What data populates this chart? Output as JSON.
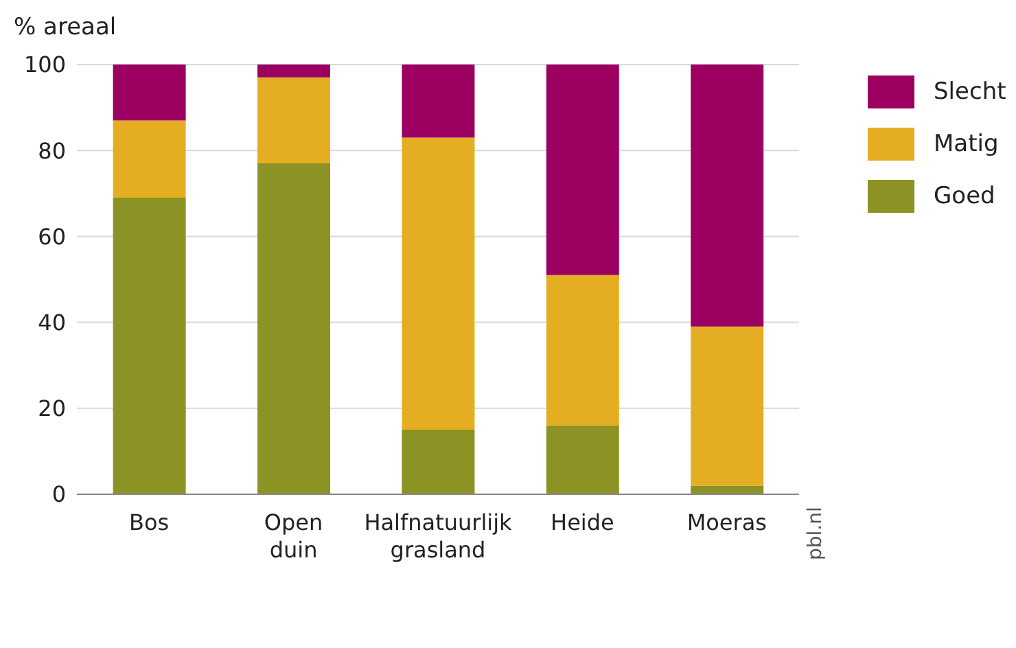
{
  "chart_data": {
    "type": "bar",
    "stacked": true,
    "ylabel": "% areaal",
    "categories": [
      "Bos",
      "Open duin",
      "Halfnatuurlijk grasland",
      "Heide",
      "Moeras"
    ],
    "series": [
      {
        "name": "Goed",
        "color": "#8c9223",
        "values": [
          69,
          77,
          15,
          16,
          2
        ]
      },
      {
        "name": "Matig",
        "color": "#e5ae22",
        "values": [
          18,
          20,
          68,
          35,
          37
        ]
      },
      {
        "name": "Slecht",
        "color": "#9c0060",
        "values": [
          13,
          3,
          17,
          49,
          61
        ]
      }
    ],
    "ylim": [
      0,
      100
    ],
    "yticks": [
      0,
      20,
      40,
      60,
      80,
      100
    ],
    "grid": "y",
    "legend": "top right",
    "annotations": [
      "pbl.nl"
    ]
  }
}
